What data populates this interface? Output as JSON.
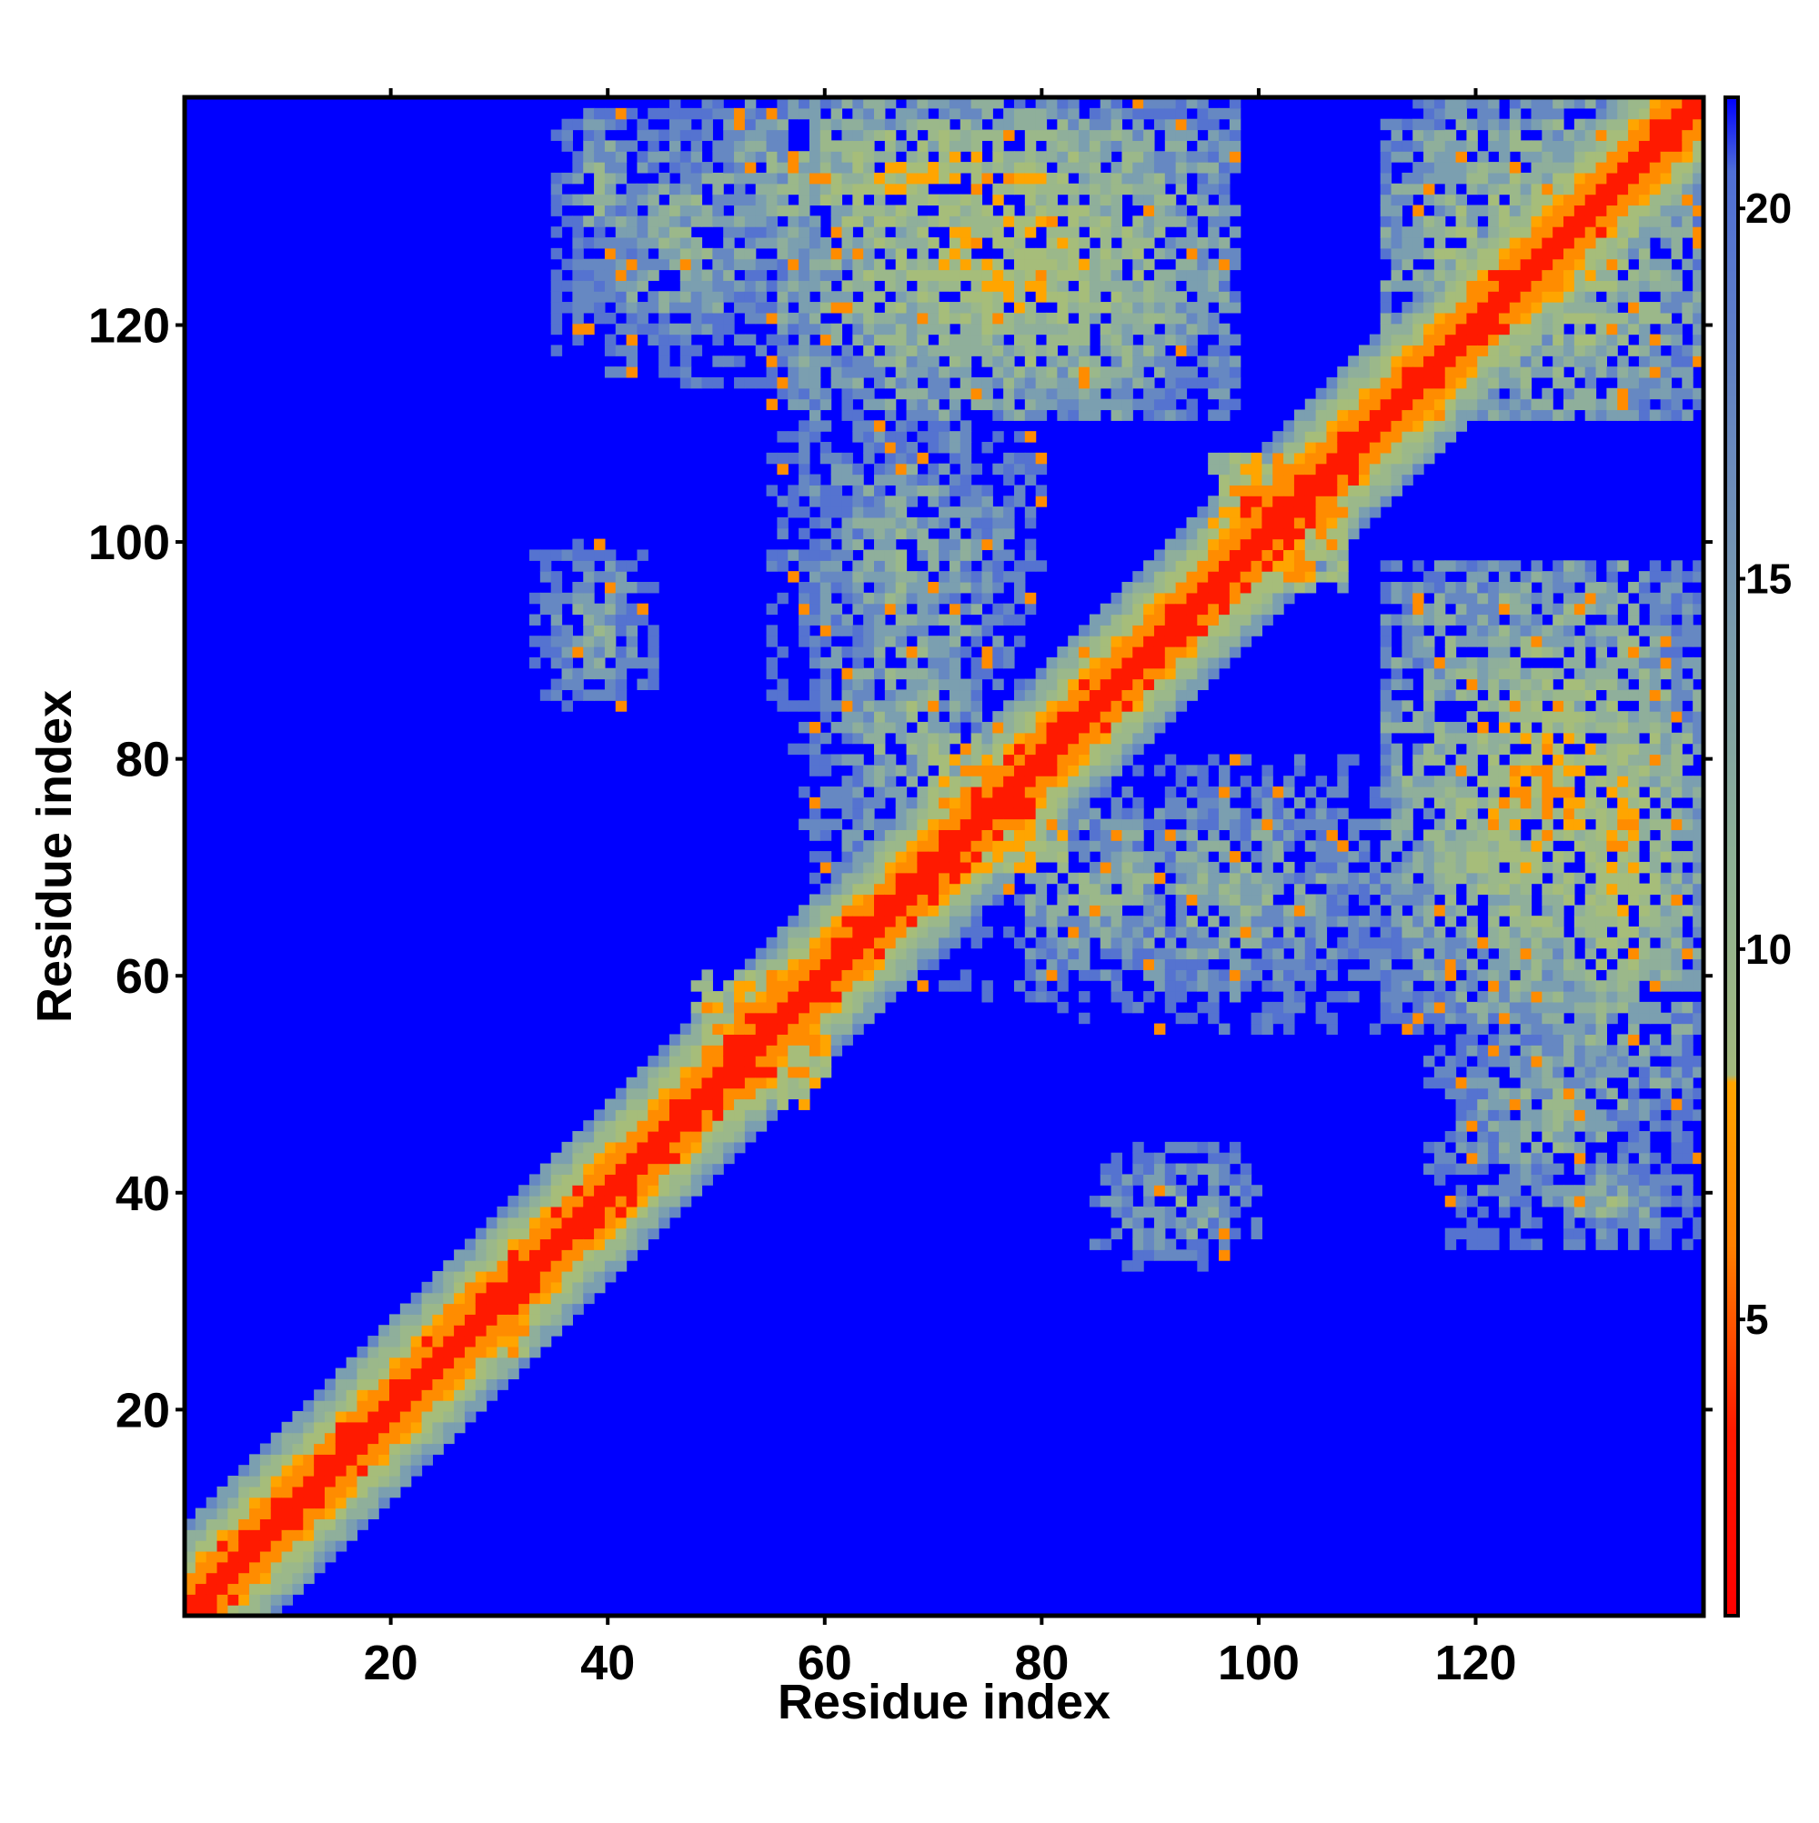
{
  "chart_data": {
    "type": "heatmap",
    "title": "",
    "xlabel": "Residue index",
    "ylabel": "Residue index",
    "xlim": [
      1,
      141
    ],
    "ylim": [
      1,
      141
    ],
    "x_ticks": [
      20,
      40,
      60,
      80,
      100,
      120
    ],
    "y_ticks": [
      20,
      40,
      60,
      80,
      100,
      120
    ],
    "x_tick_labels": [
      "20",
      "40",
      "60",
      "80",
      "100",
      "120"
    ],
    "y_tick_labels": [
      "20",
      "40",
      "60",
      "80",
      "100",
      "120"
    ],
    "grid": false,
    "legend": "none",
    "colorbar": {
      "placement": "right",
      "range": [
        1,
        21.5
      ],
      "ticks": [
        5,
        10,
        15,
        20
      ],
      "tick_labels": [
        "5",
        "10",
        "15",
        "20"
      ],
      "stops": [
        {
          "value": 1,
          "color": "#ff0000"
        },
        {
          "value": 3.5,
          "color": "#ff1a00"
        },
        {
          "value": 6,
          "color": "#ff8000"
        },
        {
          "value": 8.2,
          "color": "#ffa500"
        },
        {
          "value": 8.3,
          "color": "#a3b87c"
        },
        {
          "value": 11,
          "color": "#8fb294"
        },
        {
          "value": 16,
          "color": "#6f8fb8"
        },
        {
          "value": 20.5,
          "color": "#4f6fd6"
        },
        {
          "value": 21.5,
          "color": "#0000ff"
        }
      ]
    },
    "matrix_size": 141,
    "symmetric": true,
    "diagonal_band": {
      "red_width": 2,
      "orange_width": 4,
      "green_width": 9
    },
    "off_diagonal_patches": [
      {
        "x": [
          48,
          60
        ],
        "y": [
          48,
          60
        ],
        "level": "strong"
      },
      {
        "x": [
          25,
          32
        ],
        "y": [
          25,
          32
        ],
        "level": "strong"
      },
      {
        "x": [
          70,
          82
        ],
        "y": [
          70,
          82
        ],
        "level": "strong"
      },
      {
        "x": [
          96,
          108
        ],
        "y": [
          96,
          108
        ],
        "level": "strong"
      },
      {
        "x": [
          82,
          90
        ],
        "y": [
          82,
          90
        ],
        "level": "medium"
      },
      {
        "x": [
          126,
          141
        ],
        "y": [
          50,
          95
        ],
        "level": "medium"
      },
      {
        "x": [
          56,
          98
        ],
        "y": [
          112,
          141
        ],
        "level": "medium"
      },
      {
        "x": [
          33,
          44
        ],
        "y": [
          85,
          100
        ],
        "level": "weak"
      },
      {
        "x": [
          85,
          100
        ],
        "y": [
          33,
          44
        ],
        "level": "weak"
      },
      {
        "x": [
          35,
          43
        ],
        "y": [
          125,
          141
        ],
        "level": "weak"
      },
      {
        "x": [
          115,
          141
        ],
        "y": [
          35,
          60
        ],
        "level": "weak"
      },
      {
        "x": [
          112,
          141
        ],
        "y": [
          112,
          141
        ],
        "level": "medium"
      },
      {
        "x": [
          58,
          78
        ],
        "y": [
          60,
          110
        ],
        "level": "weak"
      },
      {
        "x": [
          80,
          115
        ],
        "y": [
          55,
          80
        ],
        "level": "weak"
      }
    ]
  }
}
